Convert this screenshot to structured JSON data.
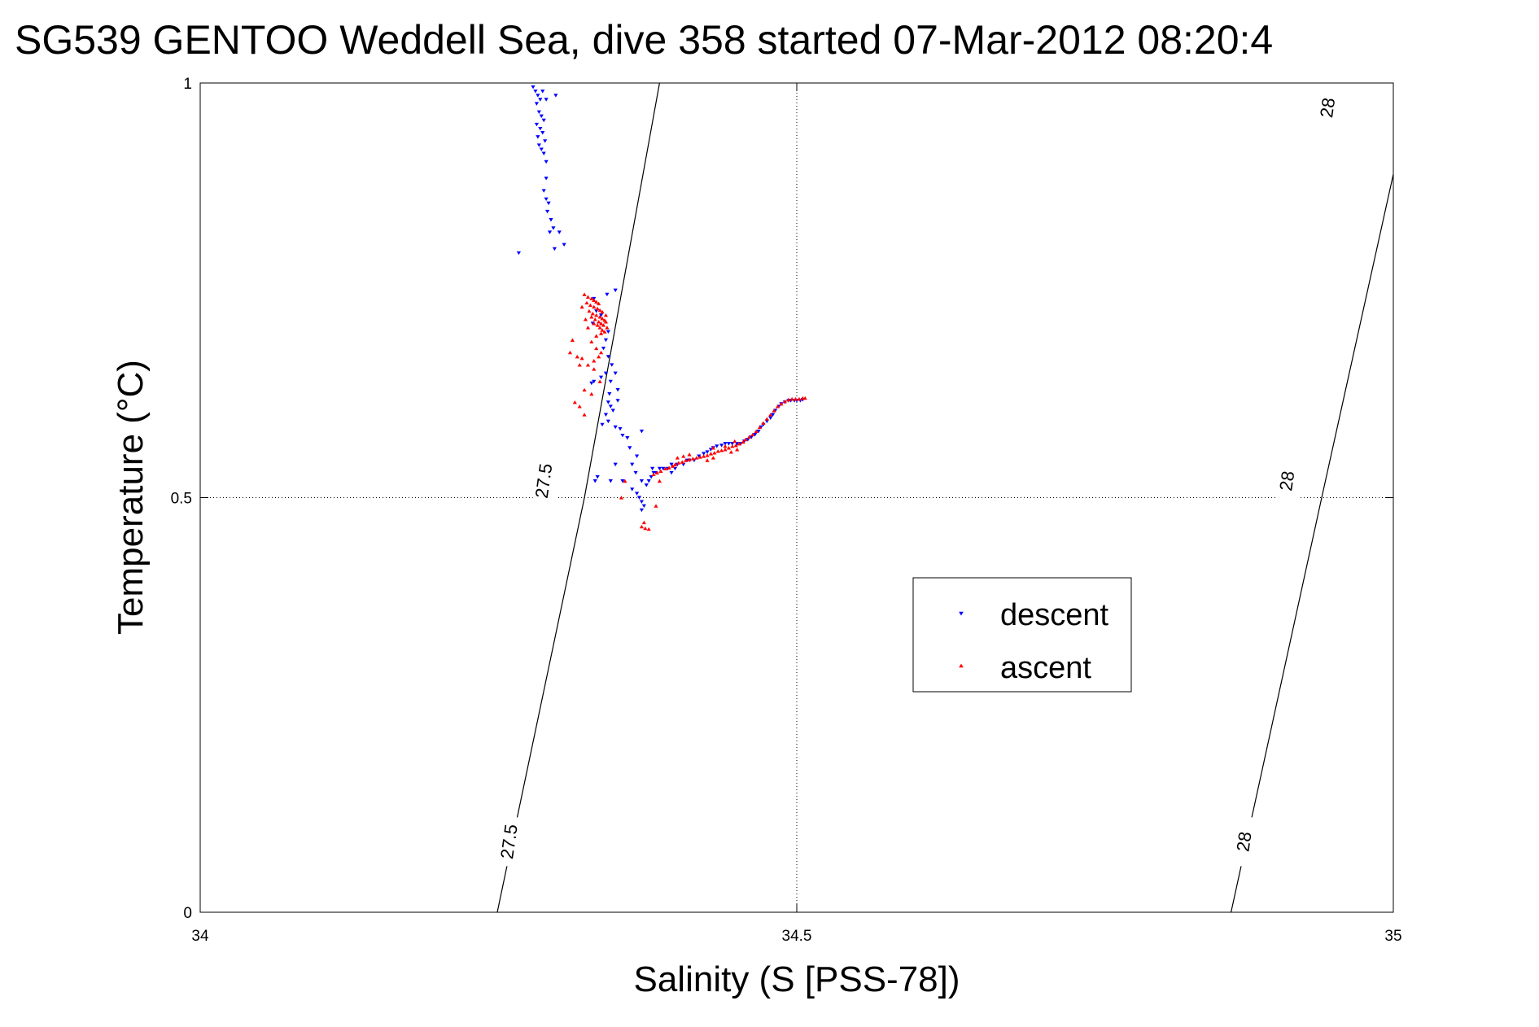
{
  "chart_data": {
    "type": "scatter",
    "title": "SG539 GENTOO Weddell Sea, dive 358 started 07-Mar-2012 08:20:4",
    "xlabel": "Salinity (S [PSS-78])",
    "ylabel": "Temperature (°C)",
    "xlim": [
      34,
      35
    ],
    "ylim": [
      0,
      1
    ],
    "x_ticks": [
      34,
      34.5,
      35
    ],
    "x_tick_labels": [
      "34",
      "34.5",
      "35"
    ],
    "y_ticks": [
      0,
      0.5,
      1
    ],
    "y_tick_labels": [
      "0",
      "0.5",
      "1"
    ],
    "grid": true,
    "grid_style": "dotted",
    "legend_position": "center-right",
    "density_contours": [
      {
        "level_label": "27.5",
        "points": [
          [
            34.249,
            0.0
          ],
          [
            34.322,
            0.5
          ],
          [
            34.322,
            0.5
          ],
          [
            34.385,
            1.0
          ]
        ],
        "labels_at": [
          [
            34.26,
            0.085
          ],
          [
            34.289,
            0.52
          ]
        ]
      },
      {
        "level_label": "28",
        "points": [
          [
            34.864,
            0.0
          ],
          [
            34.94,
            0.5
          ],
          [
            35.0,
            0.89
          ]
        ],
        "labels_at": [
          [
            34.876,
            0.085
          ],
          [
            34.912,
            0.52
          ],
          [
            34.946,
            0.97
          ]
        ]
      }
    ],
    "series": [
      {
        "name": "descent",
        "color": "#0000ff",
        "marker": "triangle-down",
        "points": [
          [
            34.279,
            0.995
          ],
          [
            34.281,
            0.99
          ],
          [
            34.283,
            0.985
          ],
          [
            34.285,
            0.98
          ],
          [
            34.287,
            0.99
          ],
          [
            34.29,
            0.98
          ],
          [
            34.298,
            0.985
          ],
          [
            34.282,
            0.975
          ],
          [
            34.284,
            0.965
          ],
          [
            34.286,
            0.96
          ],
          [
            34.288,
            0.955
          ],
          [
            34.282,
            0.95
          ],
          [
            34.285,
            0.945
          ],
          [
            34.287,
            0.94
          ],
          [
            34.283,
            0.935
          ],
          [
            34.289,
            0.93
          ],
          [
            34.284,
            0.925
          ],
          [
            34.286,
            0.92
          ],
          [
            34.288,
            0.915
          ],
          [
            34.29,
            0.905
          ],
          [
            34.29,
            0.885
          ],
          [
            34.288,
            0.87
          ],
          [
            34.29,
            0.86
          ],
          [
            34.292,
            0.855
          ],
          [
            34.291,
            0.845
          ],
          [
            34.294,
            0.835
          ],
          [
            34.296,
            0.825
          ],
          [
            34.293,
            0.82
          ],
          [
            34.301,
            0.82
          ],
          [
            34.305,
            0.805
          ],
          [
            34.297,
            0.8
          ],
          [
            34.267,
            0.795
          ],
          [
            34.348,
            0.75
          ],
          [
            34.341,
            0.745
          ],
          [
            34.33,
            0.74
          ],
          [
            34.332,
            0.725
          ],
          [
            34.336,
            0.72
          ],
          [
            34.329,
            0.71
          ],
          [
            34.342,
            0.7
          ],
          [
            34.34,
            0.69
          ],
          [
            34.338,
            0.68
          ],
          [
            34.342,
            0.67
          ],
          [
            34.345,
            0.66
          ],
          [
            34.348,
            0.65
          ],
          [
            34.34,
            0.65
          ],
          [
            34.336,
            0.645
          ],
          [
            34.33,
            0.64
          ],
          [
            34.328,
            0.638
          ],
          [
            34.344,
            0.64
          ],
          [
            34.35,
            0.63
          ],
          [
            34.343,
            0.625
          ],
          [
            34.342,
            0.615
          ],
          [
            34.34,
            0.6
          ],
          [
            34.344,
            0.61
          ],
          [
            34.35,
            0.617
          ],
          [
            34.346,
            0.605
          ],
          [
            34.342,
            0.592
          ],
          [
            34.337,
            0.588
          ],
          [
            34.348,
            0.585
          ],
          [
            34.352,
            0.583
          ],
          [
            34.354,
            0.575
          ],
          [
            34.358,
            0.572
          ],
          [
            34.37,
            0.58
          ],
          [
            34.36,
            0.56
          ],
          [
            34.366,
            0.55
          ],
          [
            34.362,
            0.54
          ],
          [
            34.365,
            0.53
          ],
          [
            34.348,
            0.54
          ],
          [
            34.333,
            0.525
          ],
          [
            34.331,
            0.52
          ],
          [
            34.354,
            0.52
          ],
          [
            34.344,
            0.52
          ],
          [
            34.362,
            0.51
          ],
          [
            34.366,
            0.505
          ],
          [
            34.368,
            0.5
          ],
          [
            34.37,
            0.495
          ],
          [
            34.372,
            0.49
          ],
          [
            34.37,
            0.485
          ],
          [
            34.37,
            0.52
          ],
          [
            34.374,
            0.515
          ],
          [
            34.376,
            0.52
          ],
          [
            34.378,
            0.525
          ],
          [
            34.38,
            0.53
          ],
          [
            34.379,
            0.535
          ],
          [
            34.382,
            0.53
          ],
          [
            34.385,
            0.535
          ],
          [
            34.388,
            0.535
          ],
          [
            34.392,
            0.535
          ],
          [
            34.395,
            0.53
          ],
          [
            34.398,
            0.535
          ],
          [
            34.395,
            0.54
          ],
          [
            34.4,
            0.54
          ],
          [
            34.405,
            0.54
          ],
          [
            34.408,
            0.545
          ],
          [
            34.41,
            0.545
          ],
          [
            34.414,
            0.545
          ],
          [
            34.418,
            0.55
          ],
          [
            34.422,
            0.553
          ],
          [
            34.425,
            0.555
          ],
          [
            34.428,
            0.558
          ],
          [
            34.43,
            0.56
          ],
          [
            34.433,
            0.562
          ],
          [
            34.437,
            0.563
          ],
          [
            34.44,
            0.565
          ],
          [
            34.443,
            0.565
          ],
          [
            34.446,
            0.565
          ],
          [
            34.45,
            0.565
          ],
          [
            34.453,
            0.565
          ],
          [
            34.456,
            0.568
          ],
          [
            34.459,
            0.57
          ],
          [
            34.462,
            0.573
          ],
          [
            34.465,
            0.576
          ],
          [
            34.468,
            0.58
          ],
          [
            34.47,
            0.585
          ],
          [
            34.472,
            0.588
          ],
          [
            34.475,
            0.592
          ],
          [
            34.478,
            0.596
          ],
          [
            34.48,
            0.6
          ],
          [
            34.482,
            0.605
          ],
          [
            34.485,
            0.61
          ],
          [
            34.487,
            0.613
          ],
          [
            34.49,
            0.615
          ],
          [
            34.493,
            0.617
          ],
          [
            34.495,
            0.617
          ],
          [
            34.498,
            0.617
          ],
          [
            34.5,
            0.617
          ],
          [
            34.503,
            0.617
          ],
          [
            34.505,
            0.618
          ]
        ]
      },
      {
        "name": "ascent",
        "color": "#ff0000",
        "marker": "triangle-up",
        "points": [
          [
            34.322,
            0.745
          ],
          [
            34.325,
            0.742
          ],
          [
            34.328,
            0.74
          ],
          [
            34.33,
            0.738
          ],
          [
            34.332,
            0.736
          ],
          [
            34.334,
            0.734
          ],
          [
            34.324,
            0.735
          ],
          [
            34.327,
            0.732
          ],
          [
            34.33,
            0.73
          ],
          [
            34.333,
            0.728
          ],
          [
            34.335,
            0.726
          ],
          [
            34.337,
            0.724
          ],
          [
            34.326,
            0.725
          ],
          [
            34.329,
            0.722
          ],
          [
            34.332,
            0.72
          ],
          [
            34.335,
            0.718
          ],
          [
            34.337,
            0.716
          ],
          [
            34.339,
            0.714
          ],
          [
            34.328,
            0.718
          ],
          [
            34.331,
            0.715
          ],
          [
            34.334,
            0.712
          ],
          [
            34.336,
            0.71
          ],
          [
            34.338,
            0.708
          ],
          [
            34.34,
            0.712
          ],
          [
            34.33,
            0.71
          ],
          [
            34.333,
            0.708
          ],
          [
            34.335,
            0.705
          ],
          [
            34.337,
            0.702
          ],
          [
            34.339,
            0.7
          ],
          [
            34.341,
            0.705
          ],
          [
            34.32,
            0.73
          ],
          [
            34.323,
            0.715
          ],
          [
            34.325,
            0.705
          ],
          [
            34.332,
            0.695
          ],
          [
            34.336,
            0.698
          ],
          [
            34.34,
            0.72
          ],
          [
            34.328,
            0.688
          ],
          [
            34.332,
            0.68
          ],
          [
            34.336,
            0.675
          ],
          [
            34.334,
            0.67
          ],
          [
            34.33,
            0.665
          ],
          [
            34.312,
            0.69
          ],
          [
            34.31,
            0.675
          ],
          [
            34.316,
            0.67
          ],
          [
            34.32,
            0.668
          ],
          [
            34.318,
            0.66
          ],
          [
            34.325,
            0.66
          ],
          [
            34.33,
            0.655
          ],
          [
            34.335,
            0.64
          ],
          [
            34.322,
            0.63
          ],
          [
            34.328,
            0.625
          ],
          [
            34.314,
            0.615
          ],
          [
            34.318,
            0.61
          ],
          [
            34.322,
            0.6
          ],
          [
            34.353,
            0.5
          ],
          [
            34.356,
            0.52
          ],
          [
            34.37,
            0.465
          ],
          [
            34.373,
            0.463
          ],
          [
            34.376,
            0.462
          ],
          [
            34.372,
            0.47
          ],
          [
            34.382,
            0.49
          ],
          [
            34.385,
            0.52
          ],
          [
            34.38,
            0.528
          ],
          [
            34.383,
            0.53
          ],
          [
            34.386,
            0.532
          ],
          [
            34.39,
            0.535
          ],
          [
            34.393,
            0.536
          ],
          [
            34.396,
            0.538
          ],
          [
            34.398,
            0.54
          ],
          [
            34.401,
            0.542
          ],
          [
            34.404,
            0.543
          ],
          [
            34.407,
            0.545
          ],
          [
            34.41,
            0.546
          ],
          [
            34.413,
            0.547
          ],
          [
            34.416,
            0.548
          ],
          [
            34.419,
            0.549
          ],
          [
            34.422,
            0.55
          ],
          [
            34.425,
            0.551
          ],
          [
            34.428,
            0.553
          ],
          [
            34.431,
            0.554
          ],
          [
            34.434,
            0.556
          ],
          [
            34.437,
            0.557
          ],
          [
            34.44,
            0.558
          ],
          [
            34.443,
            0.56
          ],
          [
            34.446,
            0.562
          ],
          [
            34.449,
            0.563
          ],
          [
            34.452,
            0.565
          ],
          [
            34.455,
            0.567
          ],
          [
            34.457,
            0.57
          ],
          [
            34.46,
            0.573
          ],
          [
            34.463,
            0.576
          ],
          [
            34.466,
            0.58
          ],
          [
            34.469,
            0.585
          ],
          [
            34.472,
            0.59
          ],
          [
            34.475,
            0.595
          ],
          [
            34.478,
            0.6
          ],
          [
            34.481,
            0.605
          ],
          [
            34.484,
            0.61
          ],
          [
            34.487,
            0.613
          ],
          [
            34.49,
            0.616
          ],
          [
            34.493,
            0.618
          ],
          [
            34.496,
            0.619
          ],
          [
            34.499,
            0.619
          ],
          [
            34.502,
            0.619
          ],
          [
            34.505,
            0.62
          ],
          [
            34.507,
            0.62
          ],
          [
            34.4,
            0.548
          ],
          [
            34.405,
            0.55
          ],
          [
            34.41,
            0.552
          ],
          [
            34.425,
            0.545
          ],
          [
            34.43,
            0.548
          ],
          [
            34.445,
            0.555
          ],
          [
            34.45,
            0.558
          ],
          [
            34.44,
            0.562
          ],
          [
            34.448,
            0.568
          ],
          [
            34.43,
            0.56
          ]
        ]
      }
    ]
  }
}
